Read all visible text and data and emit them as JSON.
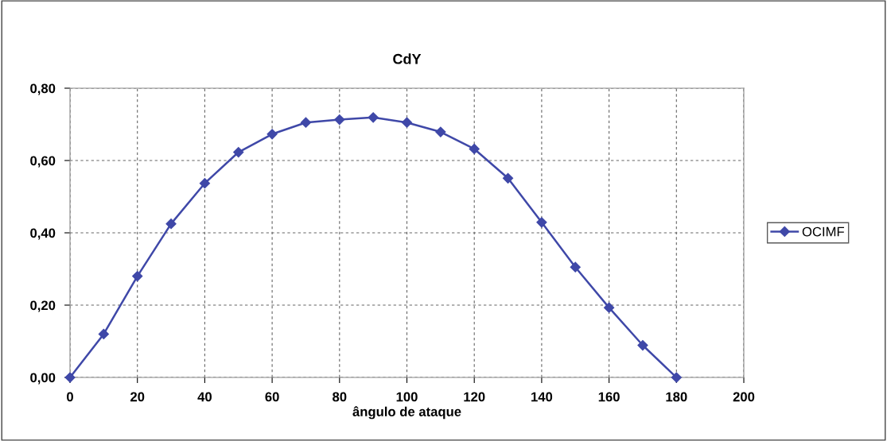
{
  "chart_data": {
    "type": "line",
    "title": "CdY",
    "xlabel": "ângulo de ataque",
    "x": [
      0,
      10,
      20,
      30,
      40,
      50,
      60,
      70,
      80,
      90,
      100,
      110,
      120,
      130,
      140,
      150,
      160,
      170,
      180
    ],
    "series": [
      {
        "name": "OCIMF",
        "color": "#3f48a8",
        "values": [
          0,
          0.12,
          0.28,
          0.425,
          0.537,
          0.623,
          0.673,
          0.705,
          0.713,
          0.719,
          0.705,
          0.679,
          0.632,
          0.551,
          0.429,
          0.305,
          0.193,
          0.089,
          0
        ]
      }
    ],
    "xlim": [
      0,
      200
    ],
    "xticks": [
      0,
      20,
      40,
      60,
      80,
      100,
      120,
      140,
      160,
      180,
      200
    ],
    "ylim": [
      0,
      0.8
    ],
    "yticks": [
      {
        "value": 0,
        "label": "0,00"
      },
      {
        "value": 0.2,
        "label": "0,20"
      },
      {
        "value": 0.4,
        "label": "0,40"
      },
      {
        "value": 0.6,
        "label": "0,60"
      },
      {
        "value": 0.8,
        "label": "0,80"
      }
    ],
    "grid": true,
    "legend": "right",
    "marker": "diamond",
    "line_style": "solid"
  }
}
